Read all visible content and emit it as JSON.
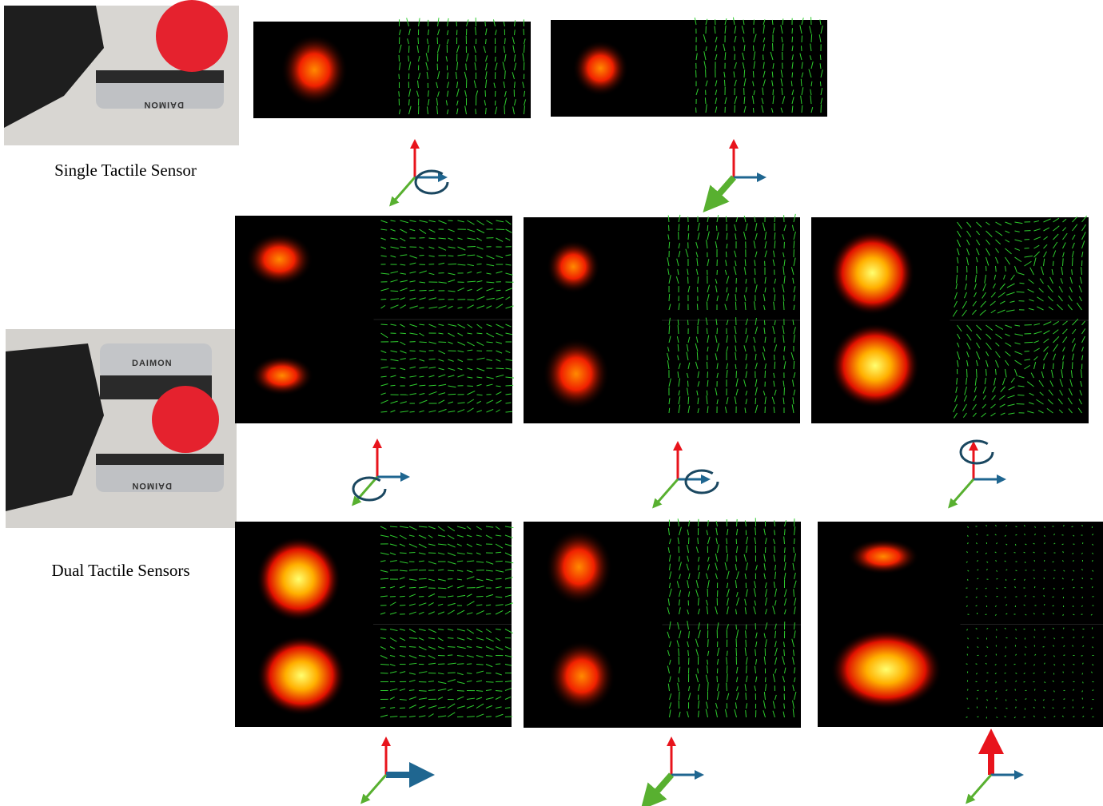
{
  "labels": {
    "single": "Single Tactile Sensor",
    "dual": "Dual Tactile Sensors"
  },
  "logo": "DAIMON"
}
